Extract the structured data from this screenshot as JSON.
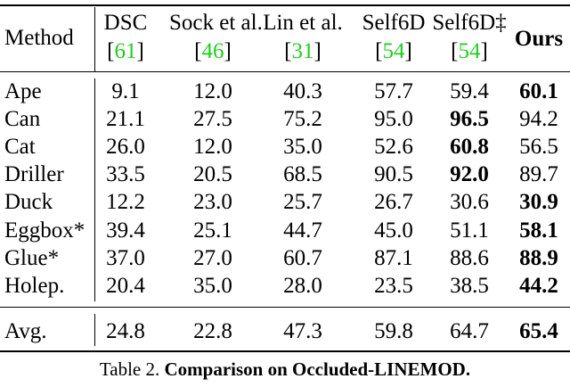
{
  "table": {
    "header": {
      "method_label": "Method",
      "columns": [
        {
          "name": "DSC",
          "cite": "61"
        },
        {
          "name": "Sock et al.",
          "cite": "46"
        },
        {
          "name": "Lin et al.",
          "cite": "31"
        },
        {
          "name": "Self6D",
          "cite": "54"
        },
        {
          "name": "Self6D‡",
          "cite": "54"
        },
        {
          "name": "Ours",
          "cite": ""
        }
      ]
    },
    "rows": [
      {
        "label": "Ape",
        "values": [
          "9.1",
          "12.0",
          "40.3",
          "57.7",
          "59.4",
          "60.1"
        ],
        "best": 5
      },
      {
        "label": "Can",
        "values": [
          "21.1",
          "27.5",
          "75.2",
          "95.0",
          "96.5",
          "94.2"
        ],
        "best": 4
      },
      {
        "label": "Cat",
        "values": [
          "26.0",
          "12.0",
          "35.0",
          "52.6",
          "60.8",
          "56.5"
        ],
        "best": 4
      },
      {
        "label": "Driller",
        "values": [
          "33.5",
          "20.5",
          "68.5",
          "90.5",
          "92.0",
          "89.7"
        ],
        "best": 4
      },
      {
        "label": "Duck",
        "values": [
          "12.2",
          "23.0",
          "25.7",
          "26.7",
          "30.6",
          "30.9"
        ],
        "best": 5
      },
      {
        "label": "Eggbox*",
        "values": [
          "39.4",
          "25.1",
          "44.7",
          "45.0",
          "51.1",
          "58.1"
        ],
        "best": 5
      },
      {
        "label": "Glue*",
        "values": [
          "37.0",
          "27.0",
          "60.7",
          "87.1",
          "88.6",
          "88.9"
        ],
        "best": 5
      },
      {
        "label": "Holep.",
        "values": [
          "20.4",
          "35.0",
          "28.0",
          "23.5",
          "38.5",
          "44.2"
        ],
        "best": 5
      }
    ],
    "average": {
      "label": "Avg.",
      "values": [
        "24.8",
        "22.8",
        "47.3",
        "59.8",
        "64.7",
        "65.4"
      ],
      "best": 5
    }
  },
  "caption": {
    "prefix": "Table 2.",
    "title": "Comparison on Occluded-LINEMOD."
  }
}
